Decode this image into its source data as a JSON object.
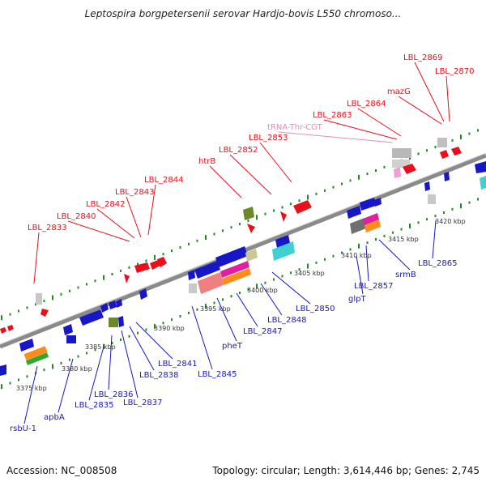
{
  "title": "Leptospira borgpetersenii serovar Hardjo-bovis L550 chromoso...",
  "footer": {
    "accession": "Accession: NC_008508",
    "summary": "Topology: circular; Length: 3,614,446 bp; Genes: 2,745"
  },
  "colors": {
    "forward": "#e8101a",
    "reverse": "#1717c8",
    "rna": "#e58cc0",
    "backbone": "#8a8a8a",
    "tick": "#1f8a1f"
  },
  "scale": [
    "3375 kbp",
    "3380 kbp",
    "3385 kbp",
    "3390 kbp",
    "3395 kbp",
    "3400 kbp",
    "3405 kbp",
    "3410 kbp",
    "3415 kbp",
    "3420 kbp"
  ],
  "labels_top": [
    "LBL_2833",
    "LBL_2840",
    "LBL_2842",
    "LBL_2843",
    "LBL_2844",
    "htrB",
    "LBL_2852",
    "LBL_2853",
    "tRNA-Thr-CGT",
    "LBL_2863",
    "LBL_2864",
    "mazG",
    "LBL_2869",
    "LBL_2870"
  ],
  "labels_bottom": [
    "rsbU-1",
    "apbA",
    "LBL_2835",
    "LBL_2836",
    "LBL_2837",
    "LBL_2838",
    "LBL_2841",
    "LBL_2845",
    "pheT",
    "LBL_2847",
    "LBL_2848",
    "LBL_2850",
    "glpT",
    "LBL_2857",
    "srmB",
    "LBL_2865"
  ]
}
